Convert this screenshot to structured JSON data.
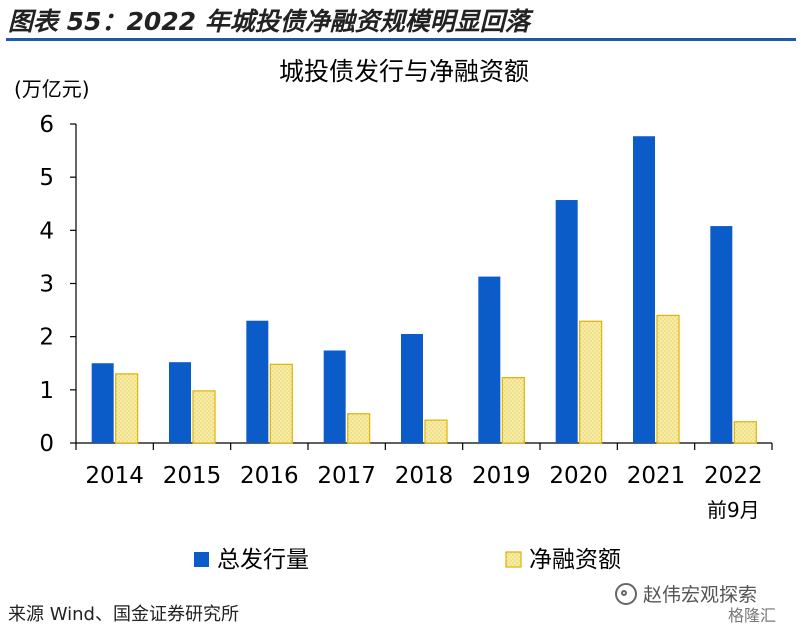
{
  "header": {
    "title": "图表 55：2022 年城投债净融资规模明显回落"
  },
  "chart_data": {
    "type": "bar",
    "title": "城投债发行与净融资额",
    "ylabel": "(万亿元)",
    "ylim": [
      0,
      6
    ],
    "yticks": [
      "0",
      "1",
      "2",
      "3",
      "4",
      "5",
      "6"
    ],
    "categories": [
      "2014",
      "2015",
      "2016",
      "2017",
      "2018",
      "2019",
      "2020",
      "2021",
      "2022"
    ],
    "category_sublabels": [
      "",
      "",
      "",
      "",
      "",
      "",
      "",
      "",
      "前9月"
    ],
    "series": [
      {
        "name": "总发行量",
        "values": [
          1.5,
          1.52,
          2.3,
          1.74,
          2.05,
          3.13,
          4.57,
          5.77,
          4.08
        ],
        "color": "#0b5cc8"
      },
      {
        "name": "净融资额",
        "values": [
          1.3,
          0.98,
          1.48,
          0.55,
          0.43,
          1.23,
          2.29,
          2.4,
          0.4
        ],
        "color": "#f5e79a",
        "border": "#e0b400"
      }
    ],
    "grid": false,
    "legend": "bottom"
  },
  "footer": {
    "source": "来源 Wind、国金证券研究所",
    "watermark": "赵伟宏观探索",
    "watermark_sub": "格隆汇"
  }
}
